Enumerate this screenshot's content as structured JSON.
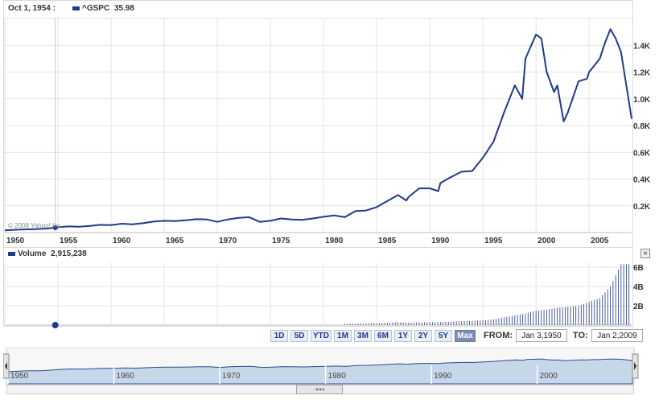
{
  "header": {
    "date": "Oct 1, 1954 :",
    "symbol": "^GSPC",
    "value": "35.98",
    "series_color": "#1f3a8a"
  },
  "copyright": "© 2008 Yahoo! Inc.",
  "volume_header": {
    "label": "Volume",
    "value": "2,915,238"
  },
  "close_label": "×",
  "range_buttons": [
    {
      "label": "1D",
      "active": false
    },
    {
      "label": "5D",
      "active": false
    },
    {
      "label": "YTD",
      "active": false
    },
    {
      "label": "1M",
      "active": false
    },
    {
      "label": "3M",
      "active": false
    },
    {
      "label": "6M",
      "active": false
    },
    {
      "label": "1Y",
      "active": false
    },
    {
      "label": "2Y",
      "active": false
    },
    {
      "label": "5Y",
      "active": false
    },
    {
      "label": "Max",
      "active": true
    }
  ],
  "from_label": "FROM:",
  "from_value": "Jan 3,1950",
  "to_label": "TO:",
  "to_value": "Jan 2,2009",
  "navigator_scroll_glyph": "◂◂◂",
  "navigator_labels": [
    "1950",
    "1960",
    "1970",
    "1980",
    "1990",
    "2000"
  ],
  "chart_data": [
    {
      "type": "line",
      "series": [
        {
          "name": "^GSPC",
          "color": "#1f3a8a"
        }
      ],
      "x_ticks": [
        "1950",
        "1955",
        "1960",
        "1965",
        "1970",
        "1975",
        "1980",
        "1985",
        "1990",
        "1995",
        "2000",
        "2005"
      ],
      "y_ticks": [
        "0.2K",
        "0.4K",
        "0.6K",
        "0.8K",
        "1.0K",
        "1.2K",
        "1.4K"
      ],
      "ylim": [
        0,
        1600
      ],
      "xlim": [
        1950,
        2009
      ],
      "grid": true,
      "points": [
        [
          1950,
          17
        ],
        [
          1951,
          21
        ],
        [
          1952,
          24
        ],
        [
          1953,
          25
        ],
        [
          1954,
          30
        ],
        [
          1955,
          40
        ],
        [
          1956,
          46
        ],
        [
          1957,
          44
        ],
        [
          1958,
          50
        ],
        [
          1959,
          58
        ],
        [
          1960,
          56
        ],
        [
          1961,
          66
        ],
        [
          1962,
          62
        ],
        [
          1963,
          70
        ],
        [
          1964,
          82
        ],
        [
          1965,
          88
        ],
        [
          1966,
          86
        ],
        [
          1967,
          92
        ],
        [
          1968,
          100
        ],
        [
          1969,
          98
        ],
        [
          1970,
          80
        ],
        [
          1971,
          98
        ],
        [
          1972,
          110
        ],
        [
          1973,
          115
        ],
        [
          1974,
          80
        ],
        [
          1975,
          88
        ],
        [
          1976,
          105
        ],
        [
          1977,
          98
        ],
        [
          1978,
          95
        ],
        [
          1979,
          105
        ],
        [
          1980,
          118
        ],
        [
          1981,
          128
        ],
        [
          1982,
          115
        ],
        [
          1983,
          160
        ],
        [
          1984,
          165
        ],
        [
          1985,
          190
        ],
        [
          1986,
          235
        ],
        [
          1987,
          280
        ],
        [
          1987.8,
          240
        ],
        [
          1988,
          265
        ],
        [
          1989,
          330
        ],
        [
          1990,
          330
        ],
        [
          1990.8,
          310
        ],
        [
          1991,
          370
        ],
        [
          1992,
          415
        ],
        [
          1993,
          455
        ],
        [
          1994,
          460
        ],
        [
          1995,
          560
        ],
        [
          1996,
          680
        ],
        [
          1997,
          900
        ],
        [
          1998,
          1100
        ],
        [
          1998.7,
          1000
        ],
        [
          1999,
          1300
        ],
        [
          2000,
          1480
        ],
        [
          2000.5,
          1450
        ],
        [
          2001,
          1200
        ],
        [
          2001.7,
          1050
        ],
        [
          2002,
          1100
        ],
        [
          2002.6,
          830
        ],
        [
          2003,
          900
        ],
        [
          2004,
          1130
        ],
        [
          2004.8,
          1150
        ],
        [
          2005,
          1200
        ],
        [
          2006,
          1300
        ],
        [
          2006.5,
          1420
        ],
        [
          2007,
          1520
        ],
        [
          2007.5,
          1450
        ],
        [
          2008,
          1350
        ],
        [
          2008.5,
          1100
        ],
        [
          2009,
          850
        ]
      ]
    },
    {
      "type": "bar",
      "name": "Volume",
      "y_ticks": [
        "2B",
        "4B",
        "6B"
      ],
      "ylim": [
        0,
        6500000000
      ],
      "x_start": 1950,
      "x_end": 2009,
      "years": [
        1982,
        1983,
        1984,
        1985,
        1986,
        1987,
        1988,
        1989,
        1990,
        1991,
        1992,
        1993,
        1994,
        1995,
        1996,
        1997,
        1998,
        1999,
        2000,
        2001,
        2002,
        2003,
        2004,
        2005,
        2006,
        2007,
        2008
      ],
      "values": [
        120000000,
        150000000,
        170000000,
        180000000,
        240000000,
        300000000,
        260000000,
        280000000,
        300000000,
        320000000,
        360000000,
        420000000,
        450000000,
        500000000,
        600000000,
        800000000,
        1000000000,
        1200000000,
        1500000000,
        1600000000,
        1800000000,
        1900000000,
        2000000000,
        2400000000,
        2800000000,
        4000000000,
        6300000000
      ]
    }
  ]
}
